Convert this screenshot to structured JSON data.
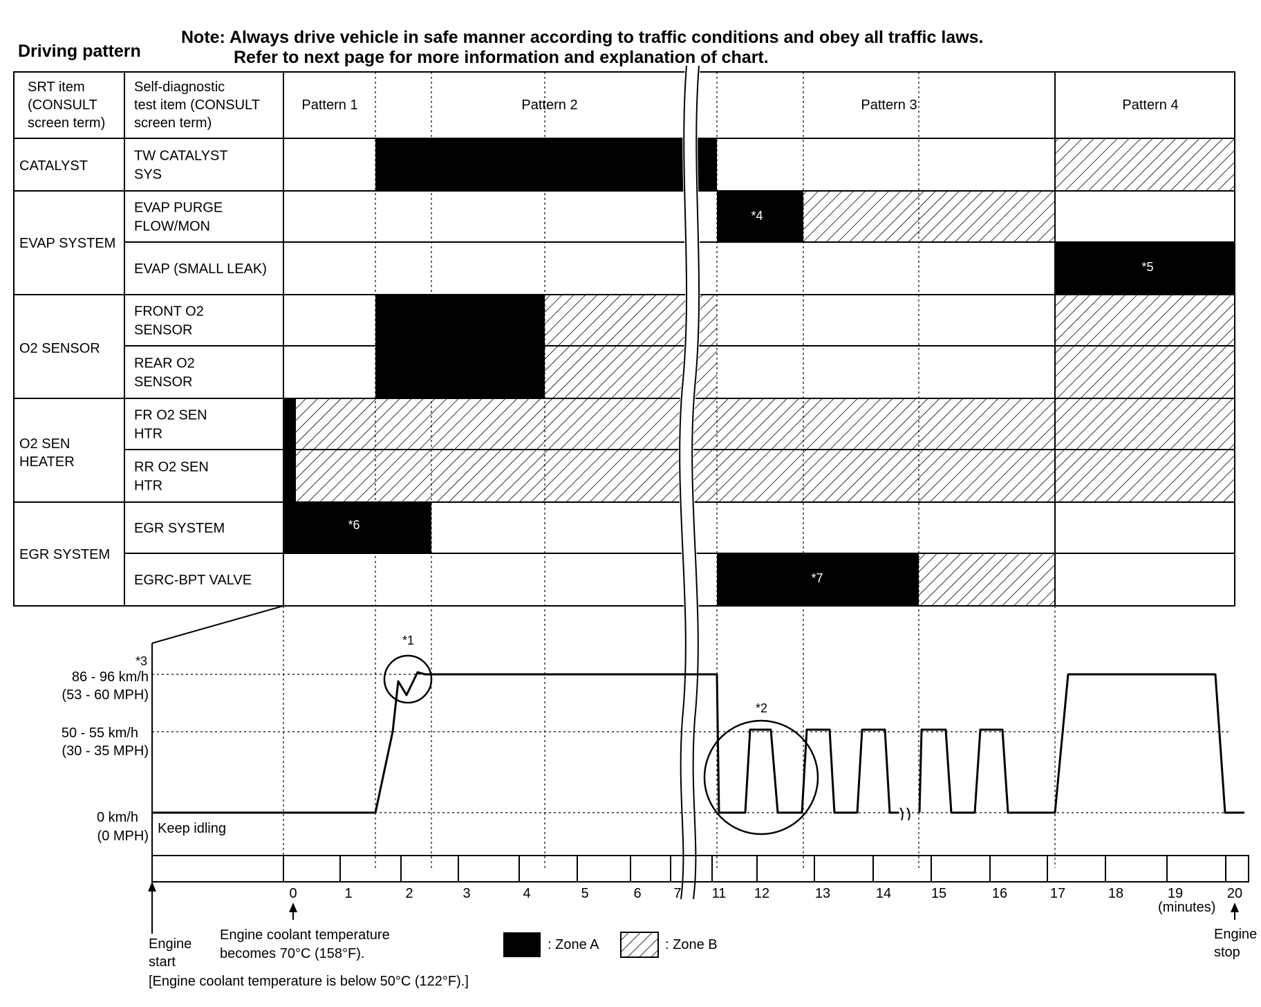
{
  "header": {
    "title": "Driving pattern",
    "note_line1": "Note: Always drive vehicle in safe manner according to traffic conditions and obey all traffic laws.",
    "note_line2": "Refer to next page for more information and explanation of chart."
  },
  "table": {
    "col_headers": {
      "srt": [
        "SRT item",
        "(CONSULT",
        "screen term)"
      ],
      "test": [
        "Self-diagnostic",
        "test item (CONSULT",
        "screen term)"
      ]
    },
    "patterns": [
      "Pattern 1",
      "Pattern 2",
      "Pattern 3",
      "Pattern 4"
    ],
    "groups": [
      {
        "name": [
          "CATALYST"
        ]
      },
      {
        "name": [
          "EVAP SYSTEM"
        ]
      },
      {
        "name": [
          "O2 SENSOR"
        ]
      },
      {
        "name": [
          "O2 SEN",
          "HEATER"
        ]
      },
      {
        "name": [
          "EGR SYSTEM"
        ]
      }
    ],
    "rows": [
      {
        "item": [
          "TW CATALYST",
          "SYS"
        ]
      },
      {
        "item": [
          "EVAP PURGE",
          "FLOW/MON"
        ]
      },
      {
        "item": [
          "EVAP (SMALL LEAK)"
        ]
      },
      {
        "item": [
          "FRONT O2",
          "SENSOR"
        ]
      },
      {
        "item": [
          "REAR O2",
          "SENSOR"
        ]
      },
      {
        "item": [
          "FR O2 SEN",
          "HTR"
        ]
      },
      {
        "item": [
          "RR O2 SEN",
          "HTR"
        ]
      },
      {
        "item": [
          "EGR SYSTEM"
        ]
      },
      {
        "item": [
          "EGRC-BPT VALVE"
        ]
      }
    ],
    "zone_labels": {
      "r1": "*4",
      "r2": "*5",
      "r7": "*6",
      "r8": "*7"
    }
  },
  "speed_chart": {
    "labels": {
      "high": [
        "86 - 96 km/h",
        "(53 - 60 MPH)"
      ],
      "mid": [
        "50 - 55 km/h",
        "(30 - 35 MPH)"
      ],
      "zero": [
        "0 km/h",
        "(0 MPH)"
      ],
      "keep_idling": "Keep idling",
      "note1": "*1",
      "note2": "*2",
      "note3": "*3"
    },
    "minute_ticks": [
      "0",
      "1",
      "2",
      "3",
      "4",
      "5",
      "6",
      "7",
      "11",
      "12",
      "13",
      "14",
      "15",
      "16",
      "17",
      "18",
      "19",
      "20"
    ],
    "minutes_unit": "(minutes)",
    "engine_start": [
      "Engine",
      "start"
    ],
    "coolant_70": [
      "Engine coolant temperature",
      "becomes 70°C (158°F)."
    ],
    "coolant_below": "[Engine coolant temperature is below 50°C (122°F).]",
    "engine_stop": [
      "Engine",
      "stop"
    ]
  },
  "legend": {
    "zone_a": ": Zone A",
    "zone_b": ": Zone B"
  }
}
